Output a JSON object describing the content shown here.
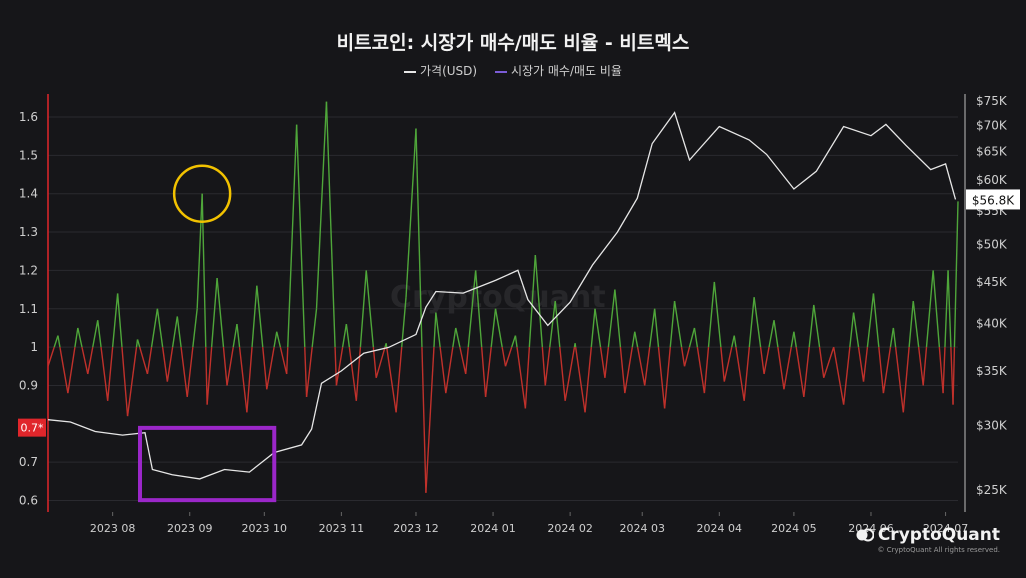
{
  "chart_data": {
    "type": "line",
    "title": "비트코인: 시장가 매수/매도 비율 - 비트멕스",
    "legend": [
      "가격(USD)",
      "시장가 매수/매도 비율"
    ],
    "legend_placement": "top-center",
    "colors": {
      "background": "#161619",
      "price": "#e6e6e6",
      "ratio_up": "#4fa63a",
      "ratio_down": "#c0312b",
      "legend_ratio": "#7b5cd6",
      "highlight_circle": "#f2c200",
      "highlight_box": "#9b27c9",
      "left_axis_marker": "#e0262b"
    },
    "x_ticks": [
      "2023 08",
      "2023 09",
      "2023 10",
      "2023 11",
      "2023 12",
      "2024 01",
      "2024 02",
      "2024 03",
      "2024 04",
      "2024 05",
      "2024 06",
      "2024 07"
    ],
    "x_range": [
      "2023-07-06",
      "2024-07-06"
    ],
    "left_axis": {
      "ticks": [
        "1.6",
        "1.5",
        "1.4",
        "1.3",
        "1.2",
        "1.1",
        "1",
        "0.9",
        "0.7",
        "0.6"
      ],
      "values": [
        1.6,
        1.5,
        1.4,
        1.3,
        1.2,
        1.1,
        1.0,
        0.9,
        0.7,
        0.6
      ],
      "range": [
        0.57,
        1.66
      ],
      "marker_label": "0.7*",
      "marker_value": 0.79
    },
    "right_axis": {
      "ticks": [
        "$75K",
        "$70K",
        "$65K",
        "$60K",
        "$55K",
        "$50K",
        "$45K",
        "$40K",
        "$35K",
        "$30K",
        "$25K"
      ],
      "values": [
        75000,
        70000,
        65000,
        60000,
        55000,
        50000,
        45000,
        40000,
        35000,
        30000,
        25000
      ],
      "scale": "log",
      "range": [
        23500,
        76500
      ],
      "last_label": "$56.8K"
    },
    "grid": "horizontal",
    "series": [
      {
        "name": "가격(USD)",
        "x": [
          "2023-07-06",
          "2023-07-15",
          "2023-07-25",
          "2023-08-05",
          "2023-08-14",
          "2023-08-17",
          "2023-08-25",
          "2023-09-05",
          "2023-09-15",
          "2023-09-25",
          "2023-10-05",
          "2023-10-16",
          "2023-10-20",
          "2023-10-24",
          "2023-11-01",
          "2023-11-10",
          "2023-11-20",
          "2023-12-01",
          "2023-12-05",
          "2023-12-09",
          "2023-12-20",
          "2024-01-02",
          "2024-01-11",
          "2024-01-15",
          "2024-01-23",
          "2024-02-01",
          "2024-02-10",
          "2024-02-20",
          "2024-02-28",
          "2024-03-05",
          "2024-03-14",
          "2024-03-20",
          "2024-04-01",
          "2024-04-13",
          "2024-04-20",
          "2024-05-01",
          "2024-05-10",
          "2024-05-21",
          "2024-06-01",
          "2024-06-07",
          "2024-06-15",
          "2024-06-25",
          "2024-07-01",
          "2024-07-05"
        ],
        "y": [
          30500,
          30300,
          29500,
          29200,
          29400,
          26500,
          26100,
          25800,
          26500,
          26300,
          27800,
          28400,
          29700,
          33800,
          35000,
          36800,
          37400,
          38800,
          41900,
          43800,
          43600,
          45200,
          46500,
          42800,
          39800,
          42500,
          47200,
          51800,
          57000,
          66500,
          72600,
          63500,
          69800,
          67200,
          64500,
          58500,
          61500,
          69800,
          68000,
          70200,
          66200,
          61800,
          62800,
          56800
        ]
      },
      {
        "name": "시장가 매수/매도 비율",
        "x": [
          "2023-07-06",
          "2023-07-10",
          "2023-07-14",
          "2023-07-18",
          "2023-07-22",
          "2023-07-26",
          "2023-07-30",
          "2023-08-03",
          "2023-08-07",
          "2023-08-11",
          "2023-08-15",
          "2023-08-19",
          "2023-08-23",
          "2023-08-27",
          "2023-08-31",
          "2023-09-04",
          "2023-09-06",
          "2023-09-08",
          "2023-09-12",
          "2023-09-16",
          "2023-09-20",
          "2023-09-24",
          "2023-09-28",
          "2023-10-02",
          "2023-10-06",
          "2023-10-10",
          "2023-10-14",
          "2023-10-18",
          "2023-10-22",
          "2023-10-26",
          "2023-10-30",
          "2023-11-03",
          "2023-11-07",
          "2023-11-11",
          "2023-11-15",
          "2023-11-19",
          "2023-11-23",
          "2023-11-27",
          "2023-12-01",
          "2023-12-05",
          "2023-12-09",
          "2023-12-13",
          "2023-12-17",
          "2023-12-21",
          "2023-12-25",
          "2023-12-29",
          "2024-01-02",
          "2024-01-06",
          "2024-01-10",
          "2024-01-14",
          "2024-01-18",
          "2024-01-22",
          "2024-01-26",
          "2024-01-30",
          "2024-02-03",
          "2024-02-07",
          "2024-02-11",
          "2024-02-15",
          "2024-02-19",
          "2024-02-23",
          "2024-02-27",
          "2024-03-02",
          "2024-03-06",
          "2024-03-10",
          "2024-03-14",
          "2024-03-18",
          "2024-03-22",
          "2024-03-26",
          "2024-03-30",
          "2024-04-03",
          "2024-04-07",
          "2024-04-11",
          "2024-04-15",
          "2024-04-19",
          "2024-04-23",
          "2024-04-27",
          "2024-05-01",
          "2024-05-05",
          "2024-05-09",
          "2024-05-13",
          "2024-05-17",
          "2024-05-21",
          "2024-05-25",
          "2024-05-29",
          "2024-06-02",
          "2024-06-06",
          "2024-06-10",
          "2024-06-14",
          "2024-06-18",
          "2024-06-22",
          "2024-06-26",
          "2024-06-30",
          "2024-07-02",
          "2024-07-04",
          "2024-07-06"
        ],
        "y": [
          0.95,
          1.03,
          0.88,
          1.05,
          0.93,
          1.07,
          0.86,
          1.14,
          0.82,
          1.02,
          0.93,
          1.1,
          0.91,
          1.08,
          0.87,
          1.1,
          1.4,
          0.85,
          1.18,
          0.9,
          1.06,
          0.83,
          1.16,
          0.89,
          1.04,
          0.93,
          1.58,
          0.87,
          1.1,
          1.64,
          0.9,
          1.06,
          0.86,
          1.2,
          0.92,
          1.01,
          0.83,
          1.13,
          1.57,
          0.62,
          1.09,
          0.88,
          1.05,
          0.93,
          1.2,
          0.87,
          1.1,
          0.95,
          1.03,
          0.84,
          1.24,
          0.9,
          1.12,
          0.86,
          1.01,
          0.83,
          1.1,
          0.92,
          1.15,
          0.88,
          1.04,
          0.9,
          1.1,
          0.84,
          1.12,
          0.95,
          1.05,
          0.88,
          1.17,
          0.91,
          1.03,
          0.86,
          1.13,
          0.93,
          1.07,
          0.89,
          1.04,
          0.87,
          1.11,
          0.92,
          1.0,
          0.85,
          1.09,
          0.91,
          1.14,
          0.88,
          1.05,
          0.83,
          1.12,
          0.9,
          1.2,
          0.88,
          1.2,
          0.85,
          1.38
        ]
      }
    ]
  },
  "brand": {
    "name": "CryptoQuant",
    "rights": "© CryptoQuant All rights reserved."
  },
  "watermark": "CryptoQuant"
}
